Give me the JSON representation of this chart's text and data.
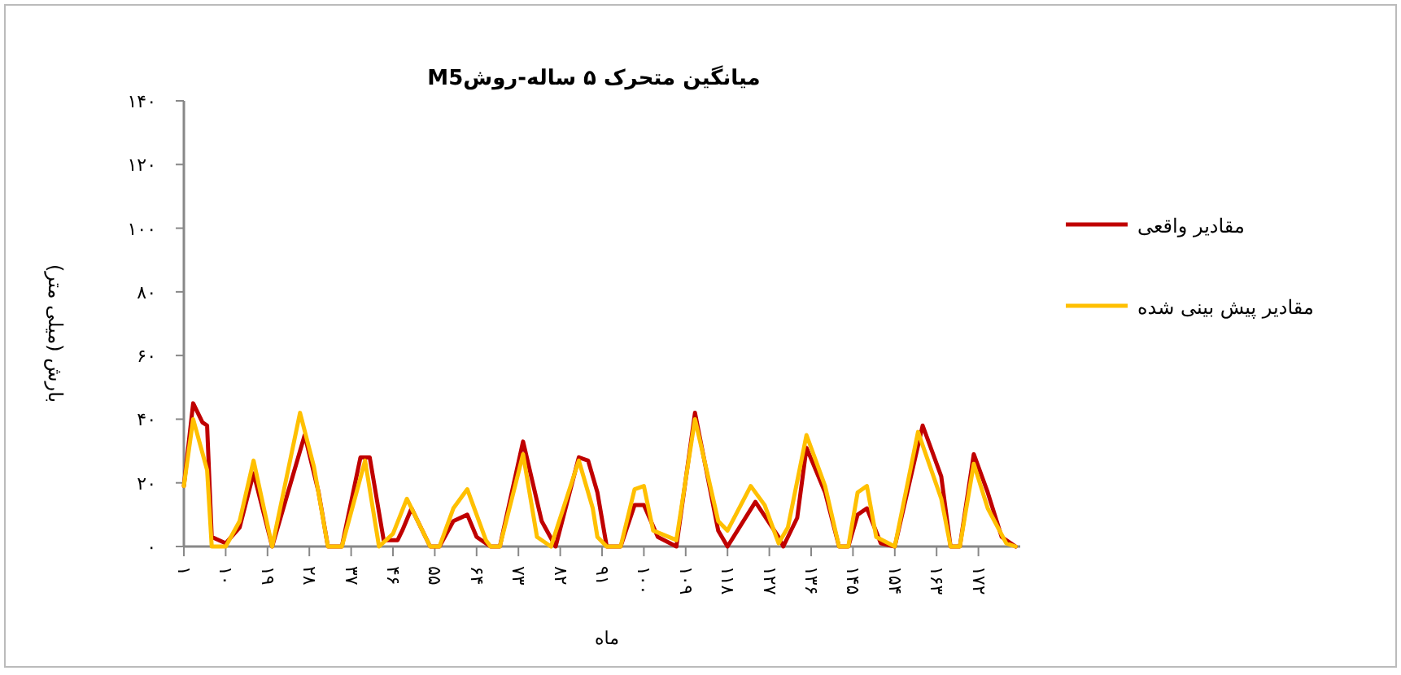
{
  "chart_data": {
    "type": "line",
    "title": "میانگین متحرک ۵ ساله-روشM5",
    "xlabel": "ماه",
    "ylabel": "بارش (میلی متر)",
    "xlim": [
      1,
      181
    ],
    "ylim": [
      0,
      140
    ],
    "yticks": [
      {
        "value": 0,
        "label": "۰"
      },
      {
        "value": 20,
        "label": "۲۰"
      },
      {
        "value": 40,
        "label": "۴۰"
      },
      {
        "value": 60,
        "label": "۶۰"
      },
      {
        "value": 80,
        "label": "۸۰"
      },
      {
        "value": 100,
        "label": "۱۰۰"
      },
      {
        "value": 120,
        "label": "۱۲۰"
      },
      {
        "value": 140,
        "label": "۱۴۰"
      }
    ],
    "xticks": [
      {
        "value": 1,
        "label": "۱"
      },
      {
        "value": 10,
        "label": "۱۰"
      },
      {
        "value": 19,
        "label": "۱۹"
      },
      {
        "value": 28,
        "label": "۲۸"
      },
      {
        "value": 37,
        "label": "۳۷"
      },
      {
        "value": 46,
        "label": "۴۶"
      },
      {
        "value": 55,
        "label": "۵۵"
      },
      {
        "value": 64,
        "label": "۶۴"
      },
      {
        "value": 73,
        "label": "۷۳"
      },
      {
        "value": 82,
        "label": "۸۲"
      },
      {
        "value": 91,
        "label": "۹۱"
      },
      {
        "value": 100,
        "label": "۱۰۰"
      },
      {
        "value": 109,
        "label": "۱۰۹"
      },
      {
        "value": 118,
        "label": "۱۱۸"
      },
      {
        "value": 127,
        "label": "۱۲۷"
      },
      {
        "value": 136,
        "label": "۱۳۶"
      },
      {
        "value": 145,
        "label": "۱۴۵"
      },
      {
        "value": 154,
        "label": "۱۵۴"
      },
      {
        "value": 163,
        "label": "۱۶۳"
      },
      {
        "value": 172,
        "label": "۱۷۲"
      }
    ],
    "grid": false,
    "legend": "right",
    "marker": "none",
    "line_style": "solid",
    "series": [
      {
        "name": "مقادیر واقعی",
        "color": "#c00000",
        "x": [
          1,
          3,
          5,
          6,
          7,
          10,
          13,
          16,
          20,
          27,
          30,
          32,
          35,
          39,
          41,
          44,
          47,
          48,
          50,
          54,
          56,
          59,
          62,
          64,
          67,
          69,
          74,
          78,
          81,
          86,
          88,
          90,
          92,
          95,
          98,
          100,
          103,
          107,
          111,
          116,
          118,
          124,
          129,
          130,
          133,
          135,
          139,
          142,
          144,
          146,
          148,
          151,
          154,
          160,
          164,
          166,
          168,
          171,
          174,
          177,
          180
        ],
        "values": [
          19,
          45,
          39,
          38,
          3,
          1,
          6,
          23,
          0,
          35,
          17,
          0,
          0,
          28,
          28,
          2,
          2,
          5,
          12,
          0,
          0,
          8,
          10,
          3,
          0,
          0,
          33,
          8,
          0,
          28,
          27,
          17,
          0,
          0,
          13,
          13,
          3,
          0,
          42,
          5,
          0,
          14,
          3,
          0,
          9,
          31,
          17,
          0,
          0,
          10,
          12,
          1,
          0,
          38,
          22,
          0,
          0,
          29,
          17,
          3,
          0
        ]
      },
      {
        "name": "مقادیر پیش بینی شده",
        "color": "#ffc000",
        "x": [
          1,
          3,
          6,
          7,
          10,
          13,
          16,
          20,
          26,
          29,
          32,
          35,
          40,
          43,
          46,
          49,
          54,
          56,
          59,
          62,
          66,
          67,
          69,
          74,
          77,
          80,
          86,
          89,
          90,
          92,
          95,
          98,
          100,
          102,
          107,
          111,
          116,
          118,
          123,
          126,
          129,
          131,
          135,
          139,
          142,
          144,
          146,
          148,
          150,
          154,
          159,
          164,
          166,
          168,
          171,
          174,
          178,
          180
        ],
        "values": [
          19,
          40,
          24,
          0,
          0,
          8,
          27,
          0,
          42,
          25,
          0,
          0,
          27,
          0,
          4,
          15,
          0,
          0,
          12,
          18,
          2,
          0,
          0,
          29,
          3,
          0,
          27,
          12,
          3,
          0,
          0,
          18,
          19,
          5,
          2,
          40,
          8,
          5,
          19,
          13,
          1,
          6,
          35,
          19,
          0,
          0,
          17,
          19,
          3,
          0,
          36,
          15,
          0,
          0,
          26,
          12,
          1,
          0
        ]
      }
    ]
  }
}
